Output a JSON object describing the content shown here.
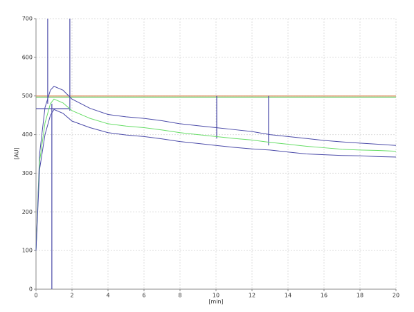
{
  "chart_data": {
    "type": "line",
    "xlabel": "[min]",
    "ylabel": "[AU]",
    "x": [
      0,
      0.2,
      0.5,
      0.8,
      1,
      1.5,
      2,
      3,
      4,
      5,
      6,
      7,
      8,
      9,
      10,
      11,
      12,
      13,
      14,
      15,
      16,
      17,
      18,
      19,
      20
    ],
    "series": [
      {
        "color": "#4a4aa8",
        "values": [
          100,
          350,
          470,
          515,
          525,
          515,
          492,
          468,
          452,
          446,
          442,
          436,
          428,
          423,
          418,
          413,
          408,
          400,
          395,
          390,
          385,
          381,
          378,
          375,
          372
        ]
      },
      {
        "color": "#66dd66",
        "values": [
          100,
          330,
          430,
          480,
          492,
          482,
          462,
          442,
          428,
          422,
          418,
          412,
          405,
          400,
          395,
          390,
          386,
          380,
          375,
          370,
          366,
          362,
          360,
          359,
          357
        ]
      },
      {
        "color": "#4a4aa8",
        "values": [
          100,
          310,
          400,
          450,
          465,
          455,
          435,
          418,
          405,
          399,
          395,
          389,
          382,
          377,
          372,
          367,
          363,
          360,
          355,
          350,
          348,
          346,
          345,
          343,
          342
        ]
      }
    ],
    "reference_lines": [
      {
        "color": "#e08a5a",
        "x": [
          0,
          20
        ],
        "y": [
          500,
          500
        ]
      },
      {
        "color": "#66cc66",
        "x": [
          0,
          20
        ],
        "y": [
          497,
          497
        ]
      },
      {
        "color": "#4a4aa8",
        "x": [
          0,
          1.88
        ],
        "y": [
          467,
          467
        ]
      },
      {
        "color": "#4a4aa8",
        "x": [
          0.65,
          0.65
        ],
        "y": [
          700,
          480
        ]
      },
      {
        "color": "#4a4aa8",
        "x": [
          1.88,
          1.88
        ],
        "y": [
          700,
          462
        ]
      },
      {
        "color": "#4a4aa8",
        "x": [
          0.88,
          0.88
        ],
        "y": [
          0,
          480
        ]
      },
      {
        "color": "#4a4aa8",
        "x": [
          10.04,
          10.04
        ],
        "y": [
          500,
          390
        ]
      },
      {
        "color": "#4a4aa8",
        "x": [
          12.92,
          12.92
        ],
        "y": [
          500,
          372
        ]
      }
    ],
    "xlim": [
      0,
      20
    ],
    "xticks": [
      0,
      2,
      4,
      6,
      8,
      10,
      12,
      14,
      16,
      18,
      20
    ],
    "ylim": [
      0,
      700
    ],
    "yticks": [
      0,
      100,
      200,
      300,
      400,
      500,
      600,
      700
    ],
    "grid": true
  }
}
